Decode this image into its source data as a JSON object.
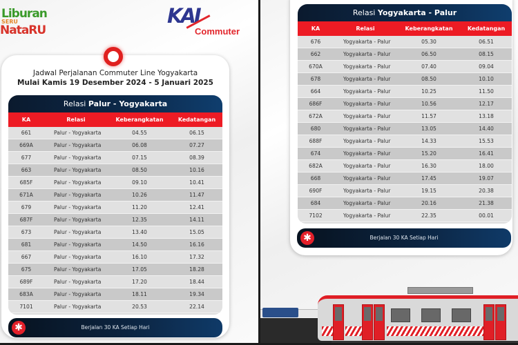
{
  "left_panel": {
    "logo_holiday": {
      "line1": "Liburan",
      "line2": "SERU",
      "line3": "NataRU"
    },
    "logo_kai": {
      "brand": "KAI",
      "sub": "Commuter"
    },
    "subtitle_line1": "Jadwal Perjalanan Commuter Line Yogyakarta",
    "subtitle_line2": "Mulai Kamis 19 Desember 2024 - 5 Januari 2025",
    "table": {
      "title_prefix": "Relasi",
      "title_route": "Palur - Yogyakarta",
      "columns": [
        "KA",
        "Relasi",
        "Keberangkatan",
        "Kedatangan"
      ],
      "rows": [
        {
          "ka": "661",
          "relasi": "Palur - Yogyakarta",
          "berangkat": "04.55",
          "datang": "06.15"
        },
        {
          "ka": "669A",
          "relasi": "Palur - Yogyakarta",
          "berangkat": "06.08",
          "datang": "07.27"
        },
        {
          "ka": "677",
          "relasi": "Palur - Yogyakarta",
          "berangkat": "07.15",
          "datang": "08.39"
        },
        {
          "ka": "663",
          "relasi": "Palur - Yogyakarta",
          "berangkat": "08.50",
          "datang": "10.16"
        },
        {
          "ka": "685F",
          "relasi": "Palur - Yogyakarta",
          "berangkat": "09.10",
          "datang": "10.41"
        },
        {
          "ka": "671A",
          "relasi": "Palur - Yogyakarta",
          "berangkat": "10.26",
          "datang": "11.47"
        },
        {
          "ka": "679",
          "relasi": "Palur - Yogyakarta",
          "berangkat": "11.20",
          "datang": "12.41"
        },
        {
          "ka": "687F",
          "relasi": "Palur - Yogyakarta",
          "berangkat": "12.35",
          "datang": "14.11"
        },
        {
          "ka": "673",
          "relasi": "Palur - Yogyakarta",
          "berangkat": "13.40",
          "datang": "15.05"
        },
        {
          "ka": "681",
          "relasi": "Palur - Yogyakarta",
          "berangkat": "14.50",
          "datang": "16.16"
        },
        {
          "ka": "667",
          "relasi": "Palur - Yogyakarta",
          "berangkat": "16.10",
          "datang": "17.32"
        },
        {
          "ka": "675",
          "relasi": "Palur - Yogyakarta",
          "berangkat": "17.05",
          "datang": "18.28"
        },
        {
          "ka": "689F",
          "relasi": "Palur - Yogyakarta",
          "berangkat": "17.20",
          "datang": "18.44"
        },
        {
          "ka": "683A",
          "relasi": "Palur - Yogyakarta",
          "berangkat": "18.11",
          "datang": "19.34"
        },
        {
          "ka": "7101",
          "relasi": "Palur - Yogyakarta",
          "berangkat": "20.53",
          "datang": "22.14"
        }
      ]
    },
    "footer": {
      "icon": "asterisk-icon",
      "text": "Berjalan 30 KA Setiap Hari"
    }
  },
  "right_panel": {
    "table": {
      "title_prefix": "Relasi",
      "title_route": "Yogyakarta - Palur",
      "columns": [
        "KA",
        "Relasi",
        "Keberangkatan",
        "Kedatangan"
      ],
      "rows": [
        {
          "ka": "676",
          "relasi": "Yogyakarta - Palur",
          "berangkat": "05.30",
          "datang": "06.51"
        },
        {
          "ka": "662",
          "relasi": "Yogyakarta - Palur",
          "berangkat": "06.50",
          "datang": "08.15"
        },
        {
          "ka": "670A",
          "relasi": "Yogyakarta - Palur",
          "berangkat": "07.40",
          "datang": "09.04"
        },
        {
          "ka": "678",
          "relasi": "Yogyakarta - Palur",
          "berangkat": "08.50",
          "datang": "10.10"
        },
        {
          "ka": "664",
          "relasi": "Yogyakarta - Palur",
          "berangkat": "10.25",
          "datang": "11.50"
        },
        {
          "ka": "686F",
          "relasi": "Yogyakarta - Palur",
          "berangkat": "10.56",
          "datang": "12.17"
        },
        {
          "ka": "672A",
          "relasi": "Yogyakarta - Palur",
          "berangkat": "11.57",
          "datang": "13.18"
        },
        {
          "ka": "680",
          "relasi": "Yogyakarta - Palur",
          "berangkat": "13.05",
          "datang": "14.40"
        },
        {
          "ka": "688F",
          "relasi": "Yogyakarta - Palur",
          "berangkat": "14.33",
          "datang": "15.53"
        },
        {
          "ka": "674",
          "relasi": "Yogyakarta - Palur",
          "berangkat": "15.20",
          "datang": "16.41"
        },
        {
          "ka": "682A",
          "relasi": "Yogyakarta - Palur",
          "berangkat": "16.30",
          "datang": "18.00"
        },
        {
          "ka": "668",
          "relasi": "Yogyakarta - Palur",
          "berangkat": "17.45",
          "datang": "19.07"
        },
        {
          "ka": "690F",
          "relasi": "Yogyakarta - Palur",
          "berangkat": "19.15",
          "datang": "20.38"
        },
        {
          "ka": "684",
          "relasi": "Yogyakarta - Palur",
          "berangkat": "20.16",
          "datang": "21.38"
        },
        {
          "ka": "7102",
          "relasi": "Yogyakarta - Palur",
          "berangkat": "22.35",
          "datang": "00.01"
        }
      ]
    },
    "footer": {
      "icon": "asterisk-icon",
      "text": "Berjalan 30 KA Setiap Hari"
    },
    "illustration": "commuter-train-illustration"
  },
  "colors": {
    "header_red": "#ed1b24",
    "title_navy": "#0c2a4c",
    "row_light": "#e1e1e1",
    "row_dark": "#c9c9c9",
    "brand_blue": "#2d3690",
    "brand_red": "#e2252b"
  }
}
